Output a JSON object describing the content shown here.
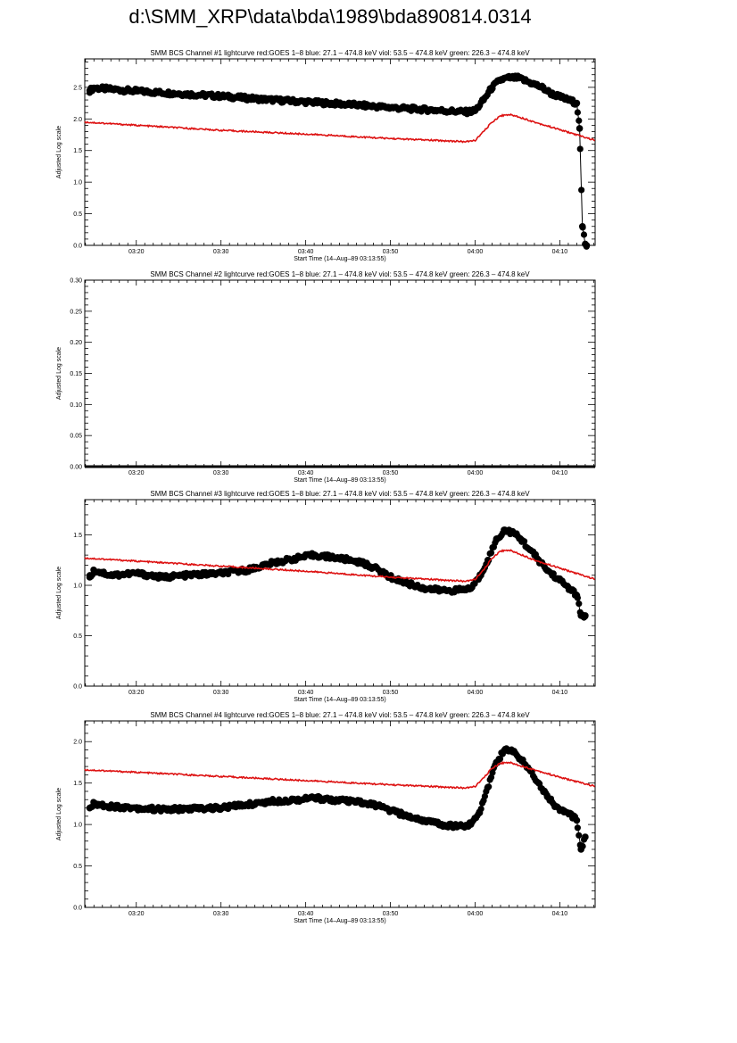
{
  "page": {
    "title": "d:\\SMM_XRP\\data\\bda\\1989\\bda890814.0314"
  },
  "colors": {
    "red": "#dd1111",
    "black": "#000000"
  },
  "chart_data": [
    {
      "type": "scatter",
      "title": "SMM BCS Channel #1 lightcurve  red:GOES 1–8  blue: 27.1 – 474.8 keV  viol: 53.5 – 474.8 keV  green: 226.3 – 474.8 keV",
      "xlabel": "Start Time (14–Aug–89 03:13:55)",
      "ylabel": "Adjusted Log scale",
      "xlim": [
        "03:13:55",
        "04:14:10"
      ],
      "ylim": [
        0,
        2.95
      ],
      "x_ticks": [
        "03:20",
        "03:30",
        "03:40",
        "03:50",
        "04:00",
        "04:10"
      ],
      "y_ticks": [
        "0.0",
        "0.5",
        "1.0",
        "1.5",
        "2.0",
        "2.5"
      ],
      "series": [
        {
          "color": "#000000",
          "style": "dots",
          "points": [
            [
              "03:14:30",
              2.45
            ],
            [
              "03:15:00",
              2.49
            ],
            [
              "03:16:00",
              2.48
            ],
            [
              "03:18:00",
              2.46
            ],
            [
              "03:20:00",
              2.44
            ],
            [
              "03:25:00",
              2.4
            ],
            [
              "03:30:00",
              2.36
            ],
            [
              "03:35:00",
              2.31
            ],
            [
              "03:40:00",
              2.27
            ],
            [
              "03:45:00",
              2.23
            ],
            [
              "03:50:00",
              2.18
            ],
            [
              "03:55:00",
              2.14
            ],
            [
              "03:59:00",
              2.11
            ],
            [
              "04:00:00",
              2.13
            ],
            [
              "04:01:00",
              2.3
            ],
            [
              "04:02:00",
              2.5
            ],
            [
              "04:03:00",
              2.62
            ],
            [
              "04:04:00",
              2.65
            ],
            [
              "04:05:00",
              2.65
            ],
            [
              "04:06:00",
              2.6
            ],
            [
              "04:07:00",
              2.55
            ],
            [
              "04:08:00",
              2.49
            ],
            [
              "04:09:00",
              2.4
            ],
            [
              "04:10:00",
              2.35
            ],
            [
              "04:11:00",
              2.3
            ],
            [
              "04:12:00",
              2.25
            ],
            [
              "04:12:20",
              1.85
            ],
            [
              "04:12:40",
              0.3
            ],
            [
              "04:13:00",
              0.02
            ],
            [
              "04:13:10",
              0.0
            ]
          ]
        },
        {
          "color": "#dd1111",
          "style": "line",
          "points": [
            [
              "03:13:55",
              1.95
            ],
            [
              "03:20:00",
              1.9
            ],
            [
              "03:30:00",
              1.82
            ],
            [
              "03:40:00",
              1.76
            ],
            [
              "03:50:00",
              1.69
            ],
            [
              "03:59:00",
              1.64
            ],
            [
              "04:00:00",
              1.66
            ],
            [
              "04:01:00",
              1.8
            ],
            [
              "04:02:00",
              1.95
            ],
            [
              "04:03:00",
              2.05
            ],
            [
              "04:04:00",
              2.07
            ],
            [
              "04:05:00",
              2.04
            ],
            [
              "04:07:00",
              1.95
            ],
            [
              "04:10:00",
              1.83
            ],
            [
              "04:14:10",
              1.66
            ]
          ]
        }
      ]
    },
    {
      "type": "scatter",
      "title": "SMM BCS Channel #2 lightcurve  red:GOES 1–8  blue: 27.1 – 474.8 keV  viol: 53.5 – 474.8 keV  green: 226.3 – 474.8 keV",
      "xlabel": "Start Time (14–Aug–89 03:13:55)",
      "ylabel": "Adjusted Log scale",
      "xlim": [
        "03:13:55",
        "04:14:10"
      ],
      "ylim": [
        0,
        0.3
      ],
      "x_ticks": [
        "03:20",
        "03:30",
        "03:40",
        "03:50",
        "04:00",
        "04:10"
      ],
      "y_ticks": [
        "0.00",
        "0.05",
        "0.10",
        "0.15",
        "0.20",
        "0.25",
        "0.30"
      ],
      "series": [
        {
          "color": "#000000",
          "style": "flat",
          "points": [
            [
              "03:13:55",
              0.0
            ],
            [
              "04:14:10",
              0.0
            ]
          ]
        }
      ]
    },
    {
      "type": "scatter",
      "title": "SMM BCS Channel #3 lightcurve  red:GOES 1–8  blue: 27.1 – 474.8 keV  viol: 53.5 – 474.8 keV  green: 226.3 – 474.8 keV",
      "xlabel": "Start Time (14–Aug–89 03:13:55)",
      "ylabel": "Adjusted Log scale",
      "xlim": [
        "03:13:55",
        "04:14:10"
      ],
      "ylim": [
        0,
        1.85
      ],
      "x_ticks": [
        "03:20",
        "03:30",
        "03:40",
        "03:50",
        "04:00",
        "04:10"
      ],
      "y_ticks": [
        "0.0",
        "0.5",
        "1.0",
        "1.5"
      ],
      "series": [
        {
          "color": "#000000",
          "style": "dots",
          "points": [
            [
              "03:14:30",
              1.08
            ],
            [
              "03:15:00",
              1.15
            ],
            [
              "03:17:00",
              1.1
            ],
            [
              "03:20:00",
              1.12
            ],
            [
              "03:23:00",
              1.08
            ],
            [
              "03:26:00",
              1.1
            ],
            [
              "03:30:00",
              1.12
            ],
            [
              "03:33:00",
              1.15
            ],
            [
              "03:36:00",
              1.22
            ],
            [
              "03:39:00",
              1.27
            ],
            [
              "03:41:00",
              1.3
            ],
            [
              "03:43:00",
              1.28
            ],
            [
              "03:46:00",
              1.24
            ],
            [
              "03:48:00",
              1.18
            ],
            [
              "03:50:00",
              1.08
            ],
            [
              "03:52:00",
              1.02
            ],
            [
              "03:54:00",
              0.97
            ],
            [
              "03:56:00",
              0.95
            ],
            [
              "03:58:00",
              0.95
            ],
            [
              "03:59:30",
              0.97
            ],
            [
              "04:00:30",
              1.08
            ],
            [
              "04:01:30",
              1.25
            ],
            [
              "04:02:30",
              1.45
            ],
            [
              "04:03:30",
              1.55
            ],
            [
              "04:04:30",
              1.52
            ],
            [
              "04:05:30",
              1.45
            ],
            [
              "04:06:30",
              1.35
            ],
            [
              "04:07:30",
              1.25
            ],
            [
              "04:08:30",
              1.15
            ],
            [
              "04:10:00",
              1.05
            ],
            [
              "04:11:00",
              0.98
            ],
            [
              "04:12:00",
              0.9
            ],
            [
              "04:12:30",
              0.7
            ],
            [
              "04:13:00",
              0.7
            ]
          ]
        },
        {
          "color": "#dd1111",
          "style": "line",
          "points": [
            [
              "03:13:55",
              1.27
            ],
            [
              "03:20:00",
              1.24
            ],
            [
              "03:30:00",
              1.19
            ],
            [
              "03:40:00",
              1.14
            ],
            [
              "03:50:00",
              1.08
            ],
            [
              "03:59:00",
              1.04
            ],
            [
              "04:00:00",
              1.06
            ],
            [
              "04:01:00",
              1.15
            ],
            [
              "04:02:00",
              1.27
            ],
            [
              "04:03:00",
              1.34
            ],
            [
              "04:04:00",
              1.35
            ],
            [
              "04:05:00",
              1.32
            ],
            [
              "04:07:00",
              1.25
            ],
            [
              "04:10:00",
              1.17
            ],
            [
              "04:14:10",
              1.06
            ]
          ]
        }
      ]
    },
    {
      "type": "scatter",
      "title": "SMM BCS Channel #4 lightcurve  red:GOES 1–8  blue: 27.1 – 474.8 keV  viol: 53.5 – 474.8 keV  green: 226.3 – 474.8 keV",
      "xlabel": "Start Time (14–Aug–89 03:13:55)",
      "ylabel": "Adjusted Log scale",
      "xlim": [
        "03:13:55",
        "04:14:10"
      ],
      "ylim": [
        0,
        2.25
      ],
      "x_ticks": [
        "03:20",
        "03:30",
        "03:40",
        "03:50",
        "04:00",
        "04:10"
      ],
      "y_ticks": [
        "0.0",
        "0.5",
        "1.0",
        "1.5",
        "2.0"
      ],
      "series": [
        {
          "color": "#000000",
          "style": "dots",
          "points": [
            [
              "03:14:30",
              1.2
            ],
            [
              "03:15:00",
              1.25
            ],
            [
              "03:17:00",
              1.22
            ],
            [
              "03:20:00",
              1.2
            ],
            [
              "03:23:00",
              1.18
            ],
            [
              "03:26:00",
              1.19
            ],
            [
              "03:30:00",
              1.2
            ],
            [
              "03:33:00",
              1.24
            ],
            [
              "03:36:00",
              1.28
            ],
            [
              "03:39:00",
              1.3
            ],
            [
              "03:41:00",
              1.32
            ],
            [
              "03:43:00",
              1.3
            ],
            [
              "03:46:00",
              1.27
            ],
            [
              "03:48:00",
              1.24
            ],
            [
              "03:50:00",
              1.17
            ],
            [
              "03:52:00",
              1.1
            ],
            [
              "03:54:00",
              1.05
            ],
            [
              "03:56:00",
              1.0
            ],
            [
              "03:58:00",
              0.98
            ],
            [
              "03:59:30",
              1.0
            ],
            [
              "04:00:30",
              1.15
            ],
            [
              "04:01:30",
              1.45
            ],
            [
              "04:02:30",
              1.75
            ],
            [
              "04:03:30",
              1.9
            ],
            [
              "04:04:30",
              1.88
            ],
            [
              "04:05:30",
              1.78
            ],
            [
              "04:06:30",
              1.65
            ],
            [
              "04:07:30",
              1.5
            ],
            [
              "04:08:30",
              1.35
            ],
            [
              "04:09:30",
              1.22
            ],
            [
              "04:10:30",
              1.15
            ],
            [
              "04:11:30",
              1.1
            ],
            [
              "04:12:00",
              1.05
            ],
            [
              "04:12:30",
              0.7
            ],
            [
              "04:13:00",
              0.85
            ]
          ]
        },
        {
          "color": "#dd1111",
          "style": "line",
          "points": [
            [
              "03:13:55",
              1.66
            ],
            [
              "03:20:00",
              1.63
            ],
            [
              "03:30:00",
              1.58
            ],
            [
              "03:40:00",
              1.53
            ],
            [
              "03:50:00",
              1.48
            ],
            [
              "03:59:00",
              1.44
            ],
            [
              "04:00:00",
              1.46
            ],
            [
              "04:01:00",
              1.56
            ],
            [
              "04:02:00",
              1.68
            ],
            [
              "04:03:00",
              1.74
            ],
            [
              "04:04:00",
              1.75
            ],
            [
              "04:05:00",
              1.72
            ],
            [
              "04:07:00",
              1.66
            ],
            [
              "04:10:00",
              1.57
            ],
            [
              "04:14:10",
              1.46
            ]
          ]
        }
      ]
    }
  ]
}
